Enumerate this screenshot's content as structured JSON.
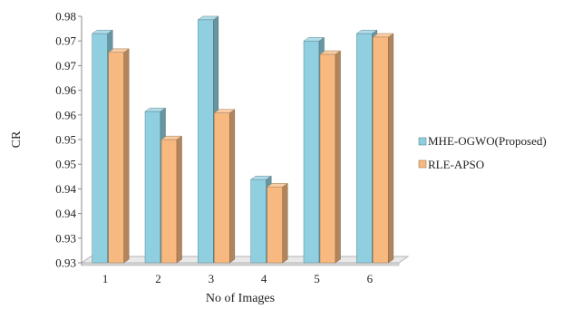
{
  "chart_data": {
    "type": "bar",
    "title": "",
    "xlabel": "No of Images",
    "ylabel": "CR",
    "categories": [
      "1",
      "2",
      "3",
      "4",
      "5",
      "6"
    ],
    "y_tick_labels": [
      "0.93",
      "0.93",
      "0.94",
      "0.94",
      "0.95",
      "0.95",
      "0.96",
      "0.96",
      "0.97",
      "0.97",
      "0.98"
    ],
    "ylim": [
      0.93,
      0.98
    ],
    "grid": false,
    "legend_position": "right",
    "series": [
      {
        "name": "MHE-OGWO(Proposed)",
        "color": "#8fcfe0",
        "values": [
          0.9765,
          0.9607,
          0.9793,
          0.9469,
          0.975,
          0.9765
        ]
      },
      {
        "name": "RLE-APSO",
        "color": "#f7b980",
        "values": [
          0.9727,
          0.955,
          0.9604,
          0.9454,
          0.9723,
          0.9758
        ]
      }
    ]
  }
}
